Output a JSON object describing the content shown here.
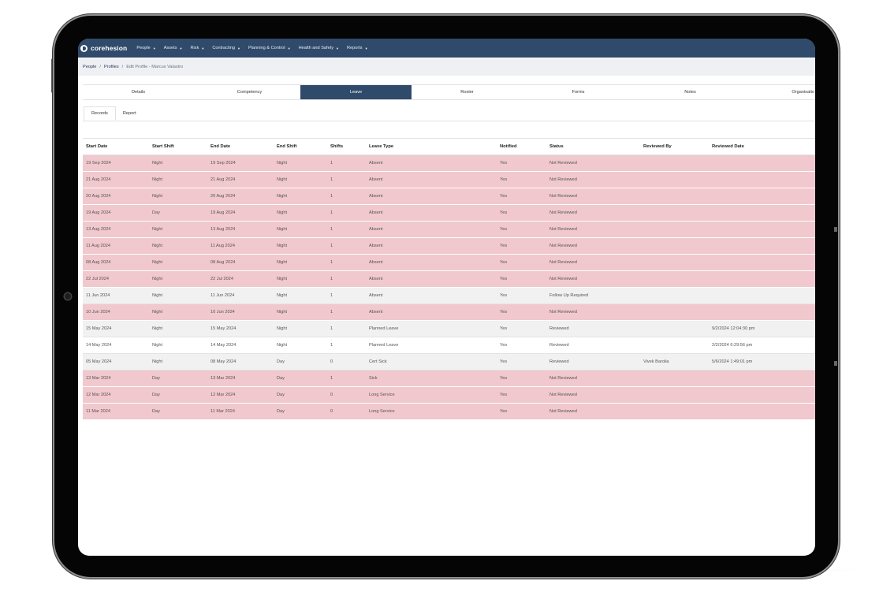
{
  "app": {
    "brand": "corehesion",
    "accent_color": "#2f4a6b",
    "unreviewed_row_color": "#f0c8ce"
  },
  "nav": {
    "items": [
      {
        "label": "People"
      },
      {
        "label": "Assets"
      },
      {
        "label": "Risk"
      },
      {
        "label": "Contracting"
      },
      {
        "label": "Planning & Control"
      },
      {
        "label": "Health and Safety"
      },
      {
        "label": "Reports"
      }
    ]
  },
  "breadcrumb": {
    "people": "People",
    "profiles": "Profiles",
    "current": "Edit Profile - Marcus Valastro",
    "sep": "/"
  },
  "tabs": [
    {
      "label": "Details"
    },
    {
      "label": "Competency"
    },
    {
      "label": "Leave",
      "active": true
    },
    {
      "label": "Roster"
    },
    {
      "label": "Forms"
    },
    {
      "label": "Notes"
    },
    {
      "label": "Organisatio"
    }
  ],
  "subtabs": [
    {
      "label": "Records",
      "active": true
    },
    {
      "label": "Report"
    }
  ],
  "table": {
    "columns": [
      "Start Date",
      "Start Shift",
      "End Date",
      "End Shift",
      "Shifts",
      "Leave Type",
      "Notified",
      "Status",
      "Reviewed By",
      "Reviewed Date"
    ],
    "rows": [
      {
        "cells": [
          "19 Sep 2024",
          "Night",
          "19 Sep 2024",
          "Night",
          "1",
          "Absent",
          "Yes",
          "Not Reviewed",
          "",
          ""
        ],
        "style": "pink"
      },
      {
        "cells": [
          "21 Aug 2024",
          "Night",
          "21 Aug 2024",
          "Night",
          "1",
          "Absent",
          "Yes",
          "Not Reviewed",
          "",
          ""
        ],
        "style": "pink"
      },
      {
        "cells": [
          "20 Aug 2024",
          "Night",
          "20 Aug 2024",
          "Night",
          "1",
          "Absent",
          "Yes",
          "Not Reviewed",
          "",
          ""
        ],
        "style": "pink"
      },
      {
        "cells": [
          "19 Aug 2024",
          "Day",
          "19 Aug 2024",
          "Night",
          "1",
          "Absent",
          "Yes",
          "Not Reviewed",
          "",
          ""
        ],
        "style": "pink"
      },
      {
        "cells": [
          "13 Aug 2024",
          "Night",
          "13 Aug 2024",
          "Night",
          "1",
          "Absent",
          "Yes",
          "Not Reviewed",
          "",
          ""
        ],
        "style": "pink"
      },
      {
        "cells": [
          "11 Aug 2024",
          "Night",
          "11 Aug 2024",
          "Night",
          "1",
          "Absent",
          "Yes",
          "Not Reviewed",
          "",
          ""
        ],
        "style": "pink"
      },
      {
        "cells": [
          "08 Aug 2024",
          "Night",
          "08 Aug 2024",
          "Night",
          "1",
          "Absent",
          "Yes",
          "Not Reviewed",
          "",
          ""
        ],
        "style": "pink"
      },
      {
        "cells": [
          "22 Jul 2024",
          "Night",
          "22 Jul 2024",
          "Night",
          "1",
          "Absent",
          "Yes",
          "Not Reviewed",
          "",
          ""
        ],
        "style": "pink"
      },
      {
        "cells": [
          "11 Jun 2024",
          "Night",
          "11 Jun 2024",
          "Night",
          "1",
          "Absent",
          "Yes",
          "Follow Up Required",
          "",
          ""
        ],
        "style": "grey"
      },
      {
        "cells": [
          "10 Jun 2024",
          "Night",
          "10 Jun 2024",
          "Night",
          "1",
          "Absent",
          "Yes",
          "Not Reviewed",
          "",
          ""
        ],
        "style": "pink"
      },
      {
        "cells": [
          "15 May 2024",
          "Night",
          "15 May 2024",
          "Night",
          "1",
          "Planned Leave",
          "Yes",
          "Reviewed",
          "",
          "9/2/2024 12:04:30 pm"
        ],
        "style": "grey"
      },
      {
        "cells": [
          "14 May 2024",
          "Night",
          "14 May 2024",
          "Night",
          "1",
          "Planned Leave",
          "Yes",
          "Reviewed",
          "",
          "2/2/2024 6:29:56 pm"
        ],
        "style": "white"
      },
      {
        "cells": [
          "05 May 2024",
          "Night",
          "08 May 2024",
          "Day",
          "0",
          "Cert Sick",
          "Yes",
          "Reviewed",
          "Vivek Barolia",
          "5/6/2024 1:49:01 pm"
        ],
        "style": "grey"
      },
      {
        "cells": [
          "13 Mar 2024",
          "Day",
          "13 Mar 2024",
          "Day",
          "1",
          "Sick",
          "Yes",
          "Not Reviewed",
          "",
          ""
        ],
        "style": "pink"
      },
      {
        "cells": [
          "12 Mar 2024",
          "Day",
          "12 Mar 2024",
          "Day",
          "0",
          "Long Service",
          "Yes",
          "Not Reviewed",
          "",
          ""
        ],
        "style": "pink"
      },
      {
        "cells": [
          "11 Mar 2024",
          "Day",
          "11 Mar 2024",
          "Day",
          "0",
          "Long Service",
          "Yes",
          "Not Reviewed",
          "",
          ""
        ],
        "style": "pink"
      }
    ]
  }
}
